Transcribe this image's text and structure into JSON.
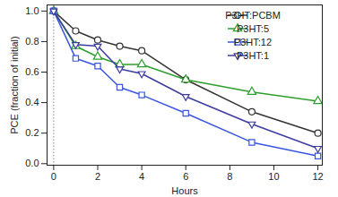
{
  "chart_data": {
    "type": "line",
    "xlabel": "Hours",
    "ylabel": "PCE (fraction of initial)",
    "x": [
      0,
      1,
      2,
      3,
      4,
      6,
      9,
      12
    ],
    "series": [
      {
        "name": "P3HT:PCBM",
        "color": "#333333",
        "marker": "circle",
        "values": [
          1.0,
          0.87,
          0.81,
          0.77,
          0.74,
          0.55,
          0.34,
          0.2
        ]
      },
      {
        "name": "P3HT:5",
        "color": "#2e9e2e",
        "marker": "triangle",
        "values": [
          1.0,
          0.77,
          0.7,
          0.65,
          0.65,
          0.55,
          0.47,
          0.41
        ]
      },
      {
        "name": "P3HT:12",
        "color": "#3a55e0",
        "marker": "square",
        "values": [
          1.0,
          0.69,
          0.64,
          0.5,
          0.45,
          0.33,
          0.14,
          0.05
        ]
      },
      {
        "name": "P3HT:1",
        "color": "#3c3ca0",
        "marker": "triangle-down",
        "values": [
          1.0,
          0.78,
          0.77,
          0.62,
          0.59,
          0.44,
          0.26,
          0.1
        ]
      }
    ],
    "xlim": [
      -0.3,
      12.2
    ],
    "ylim": [
      -0.01,
      1.04
    ],
    "xticks": [
      0,
      2,
      4,
      6,
      8,
      10,
      12
    ],
    "yticks": [
      {
        "value": 0,
        "label": "0.0"
      },
      0.2,
      0.4,
      0.6,
      0.8,
      {
        "value": 1,
        "label": "1.0"
      }
    ],
    "grid": false,
    "legend": "upper right"
  }
}
